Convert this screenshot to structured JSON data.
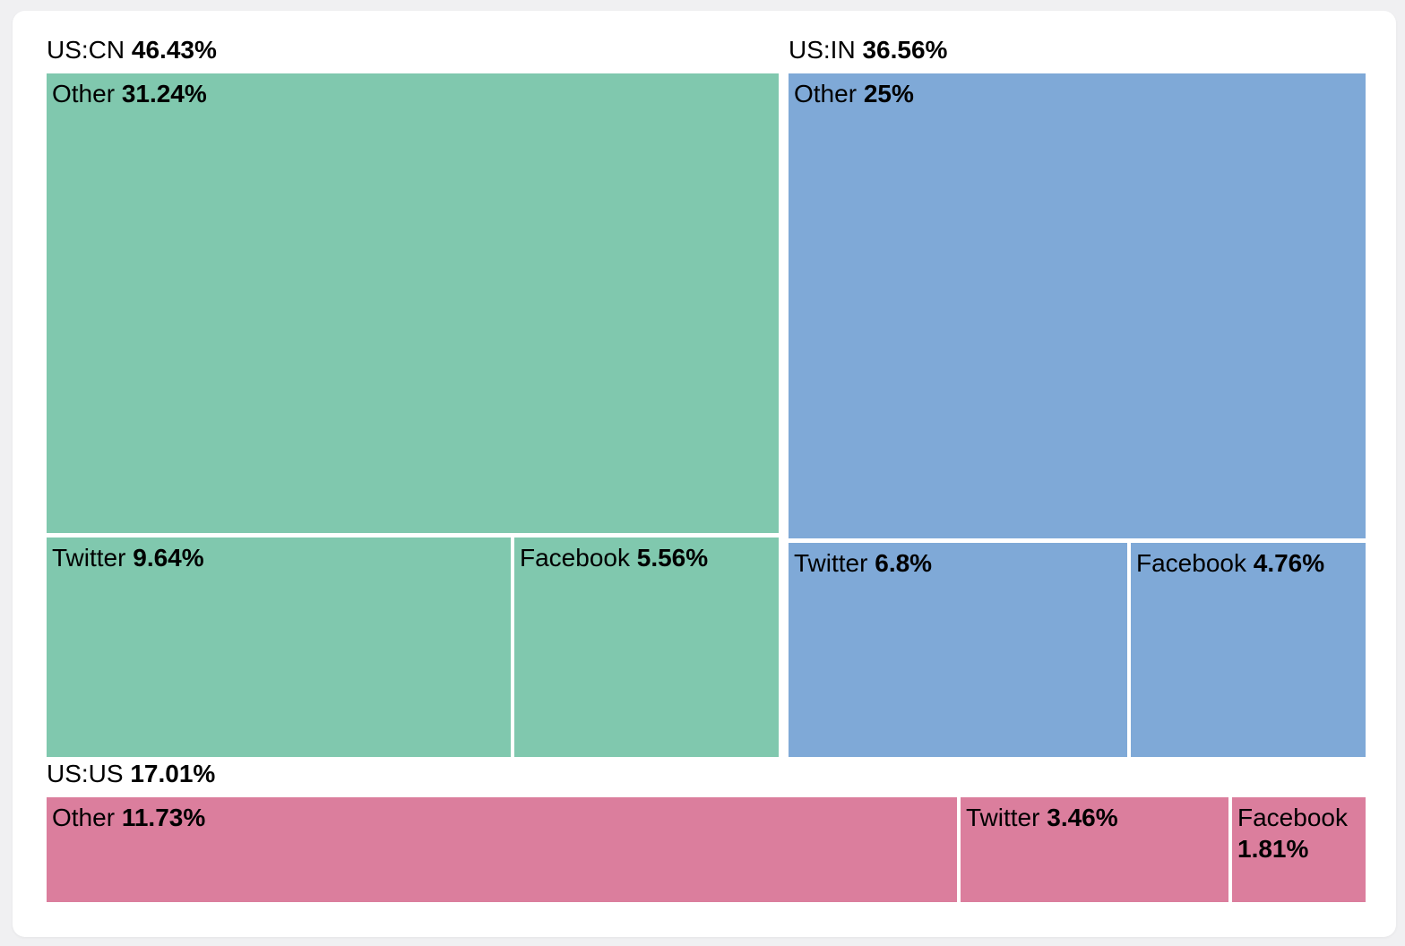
{
  "page": {
    "background_color": "#f0f0f2",
    "card_background_color": "#ffffff"
  },
  "chart_data": {
    "type": "treemap",
    "title": "",
    "unit": "%",
    "legend": "none",
    "groups": [
      {
        "label": "US:CN",
        "value": 46.43,
        "display": "46.43%",
        "color": "#80c8ae",
        "children": [
          {
            "label": "Other",
            "value": 31.24,
            "display": "31.24%"
          },
          {
            "label": "Twitter",
            "value": 9.64,
            "display": "9.64%"
          },
          {
            "label": "Facebook",
            "value": 5.56,
            "display": "5.56%"
          }
        ]
      },
      {
        "label": "US:IN",
        "value": 36.56,
        "display": "36.56%",
        "color": "#7fa9d7",
        "children": [
          {
            "label": "Other",
            "value": 25,
            "display": "25%"
          },
          {
            "label": "Twitter",
            "value": 6.8,
            "display": "6.8%"
          },
          {
            "label": "Facebook",
            "value": 4.76,
            "display": "4.76%"
          }
        ]
      },
      {
        "label": "US:US",
        "value": 17.01,
        "display": "17.01%",
        "color": "#db7e9d",
        "children": [
          {
            "label": "Other",
            "value": 11.73,
            "display": "11.73%"
          },
          {
            "label": "Twitter",
            "value": 3.46,
            "display": "3.46%"
          },
          {
            "label": "Facebook",
            "value": 1.81,
            "display": "1.81%"
          }
        ]
      }
    ]
  }
}
